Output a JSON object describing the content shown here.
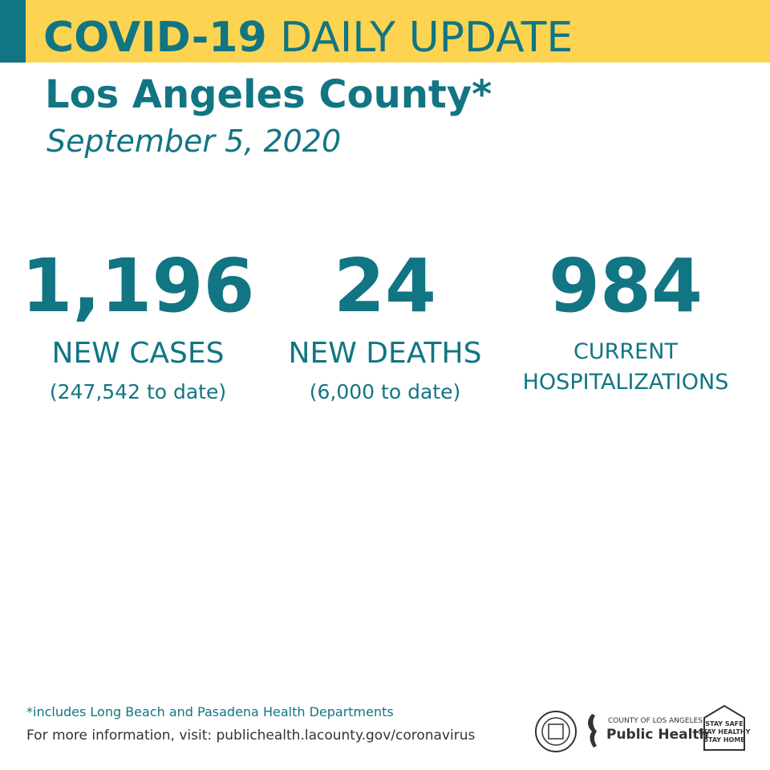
{
  "header": {
    "title_bold": "COVID-19",
    "title_rest": "DAILY UPDATE"
  },
  "subtitle": "Los Angeles County*",
  "date": "September 5, 2020",
  "stats": [
    {
      "value": "1,196",
      "label": [
        "NEW CASES"
      ],
      "note": "(247,542 to date)"
    },
    {
      "value": "24",
      "label": [
        "NEW DEATHS"
      ],
      "note": "(6,000 to date)"
    },
    {
      "value": "984",
      "label": [
        "CURRENT",
        "HOSPITALIZATIONS"
      ]
    }
  ],
  "footer": {
    "footnote": "*includes Long Beach and Pasadena Health Departments",
    "info": "For more information, visit: publichealth.lacounty.gov/coronavirus"
  },
  "logos": {
    "dept_small": "COUNTY OF LOS ANGELES",
    "dept_big": "Public Health",
    "stay": [
      "STAY SAFE",
      "STAY HEALTHY",
      "STAY HOME"
    ]
  }
}
